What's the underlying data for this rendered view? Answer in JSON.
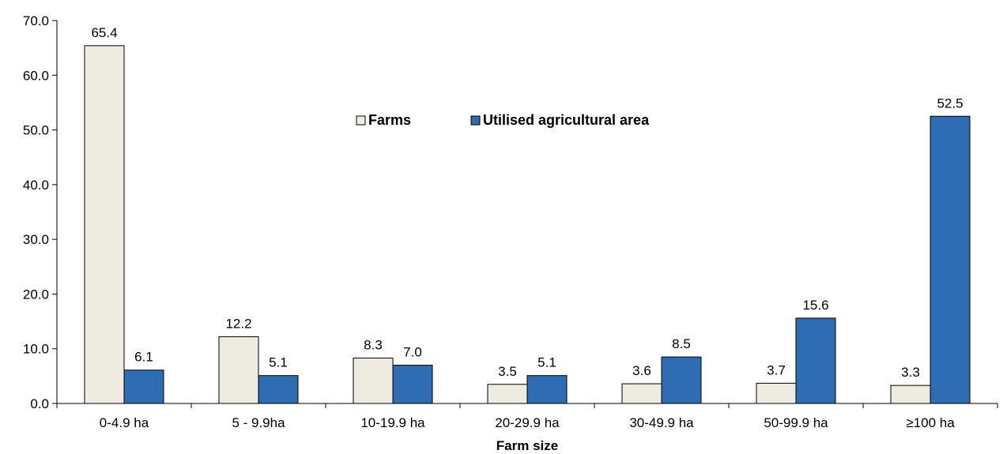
{
  "chart_data": {
    "type": "bar",
    "categories": [
      "0-4.9 ha",
      "5 - 9.9ha",
      "10-19.9 ha",
      "20-29.9 ha",
      "30-49.9 ha",
      "50-99.9 ha",
      "≥100 ha"
    ],
    "series": [
      {
        "name": "Farms",
        "values": [
          65.4,
          12.2,
          8.3,
          3.5,
          3.6,
          3.7,
          3.3
        ],
        "color": "#eeece1"
      },
      {
        "name": "Utilised agricultural area",
        "values": [
          6.1,
          5.1,
          7.0,
          5.1,
          8.5,
          15.6,
          52.5
        ],
        "color": "#2e6db4"
      }
    ],
    "title": "",
    "xlabel": "Farm size",
    "ylabel": "",
    "ylim": [
      0,
      70
    ],
    "yticks": [
      "0.0",
      "10.0",
      "20.0",
      "30.0",
      "40.0",
      "50.0",
      "60.0",
      "70.0"
    ],
    "grid": false,
    "legend_position": "top-center",
    "value_decimals": 1
  }
}
